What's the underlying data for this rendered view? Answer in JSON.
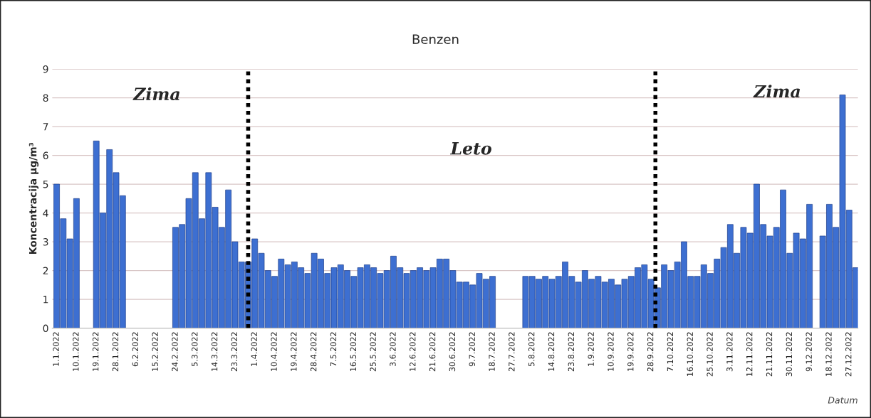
{
  "chart_data": {
    "type": "bar",
    "title": "Benzen",
    "xlabel": "Datum",
    "ylabel": "Koncentracija µg/m³",
    "annotations": [
      "Zima",
      "Leto",
      "Zima"
    ],
    "x": [
      "2022-01-01",
      "2022-01-04",
      "2022-01-07",
      "2022-01-10",
      "2022-01-13",
      "2022-01-16",
      "2022-01-19",
      "2022-01-22",
      "2022-01-25",
      "2022-01-28",
      "2022-01-31",
      "2022-02-03",
      "2022-02-06",
      "2022-02-09",
      "2022-02-12",
      "2022-02-15",
      "2022-02-18",
      "2022-02-21",
      "2022-02-24",
      "2022-02-27",
      "2022-03-02",
      "2022-03-05",
      "2022-03-08",
      "2022-03-11",
      "2022-03-14",
      "2022-03-17",
      "2022-03-20",
      "2022-03-23",
      "2022-03-26",
      "2022-03-29",
      "2022-04-01",
      "2022-04-04",
      "2022-04-07",
      "2022-04-10",
      "2022-04-13",
      "2022-04-16",
      "2022-04-19",
      "2022-04-22",
      "2022-04-25",
      "2022-04-28",
      "2022-05-01",
      "2022-05-04",
      "2022-05-07",
      "2022-05-10",
      "2022-05-13",
      "2022-05-16",
      "2022-05-19",
      "2022-05-22",
      "2022-05-25",
      "2022-05-28",
      "2022-05-31",
      "2022-06-03",
      "2022-06-06",
      "2022-06-09",
      "2022-06-12",
      "2022-06-15",
      "2022-06-18",
      "2022-06-21",
      "2022-06-24",
      "2022-06-27",
      "2022-06-30",
      "2022-07-03",
      "2022-07-06",
      "2022-07-09",
      "2022-07-12",
      "2022-07-15",
      "2022-07-18",
      "2022-07-21",
      "2022-07-24",
      "2022-07-27",
      "2022-07-30",
      "2022-08-02",
      "2022-08-05",
      "2022-08-08",
      "2022-08-11",
      "2022-08-14",
      "2022-08-17",
      "2022-08-20",
      "2022-08-23",
      "2022-08-26",
      "2022-08-29",
      "2022-09-01",
      "2022-09-04",
      "2022-09-07",
      "2022-09-10",
      "2022-09-13",
      "2022-09-16",
      "2022-09-19",
      "2022-09-22",
      "2022-09-25",
      "2022-09-28",
      "2022-10-01",
      "2022-10-04",
      "2022-10-07",
      "2022-10-10",
      "2022-10-13",
      "2022-10-16",
      "2022-10-19",
      "2022-10-22",
      "2022-10-25",
      "2022-10-28",
      "2022-10-31",
      "2022-11-03",
      "2022-11-06",
      "2022-11-09",
      "2022-11-12",
      "2022-11-15",
      "2022-11-18",
      "2022-11-21",
      "2022-11-24",
      "2022-11-27",
      "2022-11-30",
      "2022-12-03",
      "2022-12-06",
      "2022-12-09",
      "2022-12-12",
      "2022-12-15",
      "2022-12-18",
      "2022-12-21",
      "2022-12-24",
      "2022-12-27",
      "2022-12-30"
    ],
    "series": [
      {
        "color": "#3d6fd1",
        "values": [
          5.0,
          3.8,
          3.1,
          4.5,
          null,
          null,
          6.5,
          4.0,
          6.2,
          5.4,
          4.6,
          null,
          null,
          null,
          null,
          null,
          null,
          null,
          3.5,
          3.6,
          4.5,
          5.4,
          3.8,
          5.4,
          4.2,
          3.5,
          4.8,
          3.0,
          2.3,
          2.3,
          3.1,
          2.6,
          2.0,
          1.8,
          2.4,
          2.2,
          2.3,
          2.1,
          1.9,
          2.6,
          2.4,
          1.9,
          2.1,
          2.2,
          2.0,
          1.8,
          2.1,
          2.2,
          2.1,
          1.9,
          2.0,
          2.5,
          2.1,
          1.9,
          2.0,
          2.1,
          2.0,
          2.1,
          2.4,
          2.4,
          2.0,
          1.6,
          1.6,
          1.5,
          1.9,
          1.7,
          1.8,
          null,
          null,
          null,
          null,
          1.8,
          1.8,
          1.7,
          1.8,
          1.7,
          1.8,
          2.3,
          1.8,
          1.6,
          2.0,
          1.7,
          1.8,
          1.6,
          1.7,
          1.5,
          1.7,
          1.8,
          2.1,
          2.2,
          1.7,
          1.4,
          2.2,
          2.0,
          2.3,
          3.0,
          1.8,
          1.8,
          2.2,
          1.9,
          2.4,
          2.8,
          3.6,
          2.6,
          3.5,
          3.3,
          5.0,
          3.6,
          3.2,
          3.5,
          4.8,
          2.6,
          3.3,
          3.1,
          4.3,
          null,
          3.2,
          4.3,
          3.5,
          8.1,
          4.1,
          2.1
        ]
      }
    ],
    "ylim": [
      0,
      9
    ],
    "yticks": [
      0,
      1,
      2,
      3,
      4,
      5,
      6,
      7,
      8,
      9
    ],
    "xlim": [
      "2021-12-30",
      "2022-12-31"
    ],
    "xticks": [
      {
        "value": "2022-01-01",
        "label": "1.1.2022"
      },
      {
        "value": "2022-01-10",
        "label": "10.1.2022"
      },
      {
        "value": "2022-01-19",
        "label": "19.1.2022"
      },
      {
        "value": "2022-01-28",
        "label": "28.1.2022"
      },
      {
        "value": "2022-02-06",
        "label": "6.2.2022"
      },
      {
        "value": "2022-02-15",
        "label": "15.2.2022"
      },
      {
        "value": "2022-02-24",
        "label": "24.2.2022"
      },
      {
        "value": "2022-03-05",
        "label": "5.3.2022"
      },
      {
        "value": "2022-03-14",
        "label": "14.3.2022"
      },
      {
        "value": "2022-03-23",
        "label": "23.3.2022"
      },
      {
        "value": "2022-04-01",
        "label": "1.4.2022"
      },
      {
        "value": "2022-04-10",
        "label": "10.4.2022"
      },
      {
        "value": "2022-04-19",
        "label": "19.4.2022"
      },
      {
        "value": "2022-04-28",
        "label": "28.4.2022"
      },
      {
        "value": "2022-05-07",
        "label": "7.5.2022"
      },
      {
        "value": "2022-05-16",
        "label": "16.5.2022"
      },
      {
        "value": "2022-05-25",
        "label": "25.5.2022"
      },
      {
        "value": "2022-06-03",
        "label": "3.6.2022"
      },
      {
        "value": "2022-06-12",
        "label": "12.6.2022"
      },
      {
        "value": "2022-06-21",
        "label": "21.6.2022"
      },
      {
        "value": "2022-06-30",
        "label": "30.6.2022"
      },
      {
        "value": "2022-07-09",
        "label": "9.7.2022"
      },
      {
        "value": "2022-07-18",
        "label": "18.7.2022"
      },
      {
        "value": "2022-07-27",
        "label": "27.7.2022"
      },
      {
        "value": "2022-08-05",
        "label": "5.8.2022"
      },
      {
        "value": "2022-08-14",
        "label": "14.8.2022"
      },
      {
        "value": "2022-08-23",
        "label": "23.8.2022"
      },
      {
        "value": "2022-09-01",
        "label": "1.9.2022"
      },
      {
        "value": "2022-09-10",
        "label": "10.9.2022"
      },
      {
        "value": "2022-09-19",
        "label": "19.9.2022"
      },
      {
        "value": "2022-09-28",
        "label": "28.9.2022"
      },
      {
        "value": "2022-10-07",
        "label": "7.10.2022"
      },
      {
        "value": "2022-10-16",
        "label": "16.10.2022"
      },
      {
        "value": "2022-10-25",
        "label": "25.10.2022"
      },
      {
        "value": "2022-11-03",
        "label": "3.11.2022"
      },
      {
        "value": "2022-11-12",
        "label": "12.11.2022"
      },
      {
        "value": "2022-11-21",
        "label": "21.11.2022"
      },
      {
        "value": "2022-11-30",
        "label": "30.11.2022"
      },
      {
        "value": "2022-12-09",
        "label": "9.12.2022"
      },
      {
        "value": "2022-12-18",
        "label": "18.12.2022"
      },
      {
        "value": "2022-12-27",
        "label": "27.12.2022"
      }
    ],
    "ref_lines": [
      {
        "axis": "x",
        "value": "2022-03-29",
        "color": "#000000",
        "line_style": "dotted"
      },
      {
        "axis": "x",
        "value": "2022-09-30",
        "color": "#000000",
        "line_style": "dotted"
      }
    ],
    "grid": "y",
    "legend": false
  }
}
